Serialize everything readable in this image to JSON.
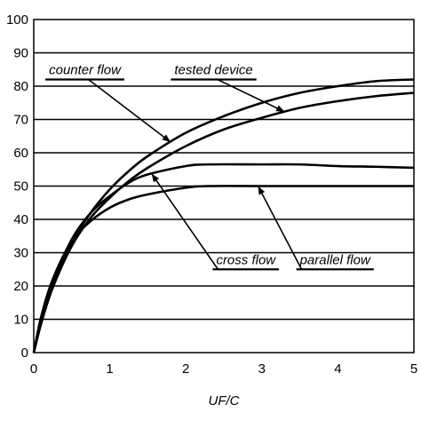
{
  "chart_data": {
    "type": "line",
    "xlabel": "UF/C",
    "ylabel": "",
    "title": "",
    "xlim": [
      0,
      5
    ],
    "ylim": [
      0,
      100
    ],
    "x_ticks": [
      0,
      1,
      2,
      3,
      4,
      5
    ],
    "y_ticks": [
      0,
      10,
      20,
      30,
      40,
      50,
      60,
      70,
      80,
      90,
      100
    ],
    "grid": "horizontal",
    "legend": "none",
    "series": [
      {
        "name": "counter flow",
        "x": [
          0,
          0.1,
          0.25,
          0.5,
          0.75,
          1.0,
          1.25,
          1.5,
          2.0,
          2.5,
          3.0,
          3.5,
          4.0,
          4.5,
          5.0
        ],
        "y": [
          0,
          9,
          20,
          33,
          42,
          49,
          54.5,
          59,
          66,
          71,
          75,
          78,
          80,
          81.5,
          82
        ]
      },
      {
        "name": "tested device",
        "x": [
          0,
          0.1,
          0.25,
          0.5,
          0.75,
          1.0,
          1.25,
          1.5,
          2.0,
          2.5,
          3.0,
          3.5,
          4.0,
          4.5,
          5.0
        ],
        "y": [
          0,
          9,
          19.5,
          32,
          40.5,
          46.5,
          51.5,
          55.5,
          62,
          67,
          70.5,
          73.5,
          75.5,
          77,
          78
        ]
      },
      {
        "name": "cross flow",
        "x": [
          0,
          0.1,
          0.25,
          0.5,
          0.75,
          1.0,
          1.25,
          1.5,
          2.0,
          2.3,
          3.0,
          3.5,
          4.0,
          4.5,
          5.0
        ],
        "y": [
          0,
          10,
          21,
          34,
          42,
          47,
          51,
          53.5,
          56,
          56.5,
          56.5,
          56.5,
          56,
          55.8,
          55.5
        ]
      },
      {
        "name": "parallel flow",
        "x": [
          0,
          0.1,
          0.25,
          0.5,
          0.75,
          1.0,
          1.25,
          1.5,
          2.0,
          2.3,
          3.0,
          3.5,
          4.0,
          4.5,
          5.0
        ],
        "y": [
          0,
          11,
          22,
          33.5,
          39.5,
          43.5,
          46,
          47.5,
          49.5,
          50,
          50,
          50,
          50,
          50,
          50
        ]
      }
    ],
    "annotations": [
      {
        "text": "counter flow",
        "target_series": "counter flow",
        "target_x": 1.8,
        "label_x": 0.2,
        "label_y": 82
      },
      {
        "text": "tested device",
        "target_series": "tested device",
        "target_x": 3.3,
        "label_x": 1.85,
        "label_y": 82
      },
      {
        "text": "cross flow",
        "target_series": "cross flow",
        "target_x": 1.55,
        "label_x": 2.4,
        "label_y": 25
      },
      {
        "text": "parallel flow",
        "target_series": "parallel flow",
        "target_x": 2.95,
        "label_x": 3.5,
        "label_y": 25
      }
    ]
  }
}
